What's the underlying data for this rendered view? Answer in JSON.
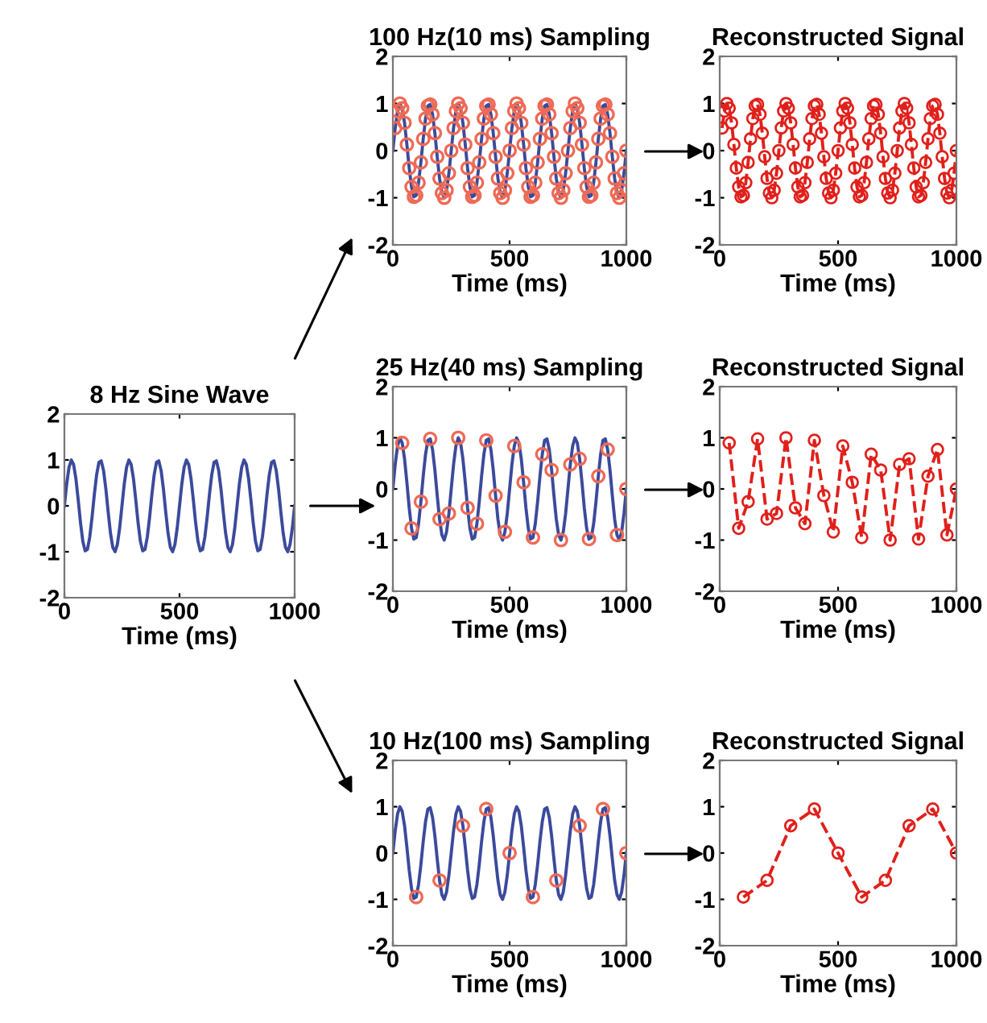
{
  "chart_data": [
    {
      "type": "line",
      "title": "8 Hz Sine Wave",
      "xlabel": "Time (ms)",
      "xlim": [
        0,
        1000
      ],
      "xticks": [
        0,
        500,
        1000
      ],
      "ylim": [
        -2,
        2
      ],
      "yticks": [
        -2,
        -1,
        0,
        1,
        2
      ],
      "series": [
        {
          "type": "line",
          "color": "#3b4a9c",
          "line_style": "solid",
          "x": [
            0,
            10,
            20,
            30,
            40,
            50,
            60,
            70,
            80,
            90,
            100,
            110,
            120,
            130,
            140,
            150,
            160,
            170,
            180,
            190,
            200,
            210,
            220,
            230,
            240,
            250,
            260,
            270,
            280,
            290,
            300,
            310,
            320,
            330,
            340,
            350,
            360,
            370,
            380,
            390,
            400,
            410,
            420,
            430,
            440,
            450,
            460,
            470,
            480,
            490,
            500,
            510,
            520,
            530,
            540,
            550,
            560,
            570,
            580,
            590,
            600,
            610,
            620,
            630,
            640,
            650,
            660,
            670,
            680,
            690,
            700,
            710,
            720,
            730,
            740,
            750,
            760,
            770,
            780,
            790,
            800,
            810,
            820,
            830,
            840,
            850,
            860,
            870,
            880,
            890,
            900,
            910,
            920,
            930,
            940,
            950,
            960,
            970,
            980,
            990,
            1000
          ],
          "values": [
            0,
            0.48,
            0.84,
            1.0,
            0.9,
            0.59,
            0.13,
            -0.37,
            -0.77,
            -0.98,
            -0.95,
            -0.68,
            -0.25,
            0.25,
            0.68,
            0.95,
            0.98,
            0.77,
            0.37,
            -0.13,
            -0.59,
            -0.9,
            -1.0,
            -0.84,
            -0.48,
            0,
            0.48,
            0.84,
            1.0,
            0.9,
            0.59,
            0.13,
            -0.37,
            -0.77,
            -0.98,
            -0.95,
            -0.68,
            -0.25,
            0.25,
            0.68,
            0.95,
            0.98,
            0.77,
            0.37,
            -0.13,
            -0.59,
            -0.9,
            -1.0,
            -0.84,
            -0.48,
            0,
            0.48,
            0.84,
            1.0,
            0.9,
            0.59,
            0.13,
            -0.37,
            -0.77,
            -0.98,
            -0.95,
            -0.68,
            -0.25,
            0.25,
            0.68,
            0.95,
            0.98,
            0.77,
            0.37,
            -0.13,
            -0.59,
            -0.9,
            -1.0,
            -0.84,
            -0.48,
            0,
            0.48,
            0.84,
            1.0,
            0.9,
            0.59,
            0.13,
            -0.37,
            -0.77,
            -0.98,
            -0.95,
            -0.68,
            -0.25,
            0.25,
            0.68,
            0.95,
            0.98,
            0.77,
            0.37,
            -0.13,
            -0.59,
            -0.9,
            -1.0,
            -0.84,
            -0.48,
            0
          ]
        }
      ]
    },
    {
      "type": "line",
      "title": "100 Hz(10 ms) Sampling",
      "xlabel": "Time (ms)",
      "xlim": [
        0,
        1000
      ],
      "xticks": [
        0,
        500,
        1000
      ],
      "ylim": [
        -2,
        2
      ],
      "yticks": [
        -2,
        -1,
        0,
        1,
        2
      ],
      "series": [
        {
          "type": "line",
          "color": "#3b4a9c",
          "line_style": "solid",
          "x": [
            0,
            10,
            20,
            30,
            40,
            50,
            60,
            70,
            80,
            90,
            100,
            110,
            120,
            130,
            140,
            150,
            160,
            170,
            180,
            190,
            200,
            210,
            220,
            230,
            240,
            250,
            260,
            270,
            280,
            290,
            300,
            310,
            320,
            330,
            340,
            350,
            360,
            370,
            380,
            390,
            400,
            410,
            420,
            430,
            440,
            450,
            460,
            470,
            480,
            490,
            500,
            510,
            520,
            530,
            540,
            550,
            560,
            570,
            580,
            590,
            600,
            610,
            620,
            630,
            640,
            650,
            660,
            670,
            680,
            690,
            700,
            710,
            720,
            730,
            740,
            750,
            760,
            770,
            780,
            790,
            800,
            810,
            820,
            830,
            840,
            850,
            860,
            870,
            880,
            890,
            900,
            910,
            920,
            930,
            940,
            950,
            960,
            970,
            980,
            990,
            1000
          ],
          "values": [
            0,
            0.48,
            0.84,
            1.0,
            0.9,
            0.59,
            0.13,
            -0.37,
            -0.77,
            -0.98,
            -0.95,
            -0.68,
            -0.25,
            0.25,
            0.68,
            0.95,
            0.98,
            0.77,
            0.37,
            -0.13,
            -0.59,
            -0.9,
            -1.0,
            -0.84,
            -0.48,
            0,
            0.48,
            0.84,
            1.0,
            0.9,
            0.59,
            0.13,
            -0.37,
            -0.77,
            -0.98,
            -0.95,
            -0.68,
            -0.25,
            0.25,
            0.68,
            0.95,
            0.98,
            0.77,
            0.37,
            -0.13,
            -0.59,
            -0.9,
            -1.0,
            -0.84,
            -0.48,
            0,
            0.48,
            0.84,
            1.0,
            0.9,
            0.59,
            0.13,
            -0.37,
            -0.77,
            -0.98,
            -0.95,
            -0.68,
            -0.25,
            0.25,
            0.68,
            0.95,
            0.98,
            0.77,
            0.37,
            -0.13,
            -0.59,
            -0.9,
            -1.0,
            -0.84,
            -0.48,
            0,
            0.48,
            0.84,
            1.0,
            0.9,
            0.59,
            0.13,
            -0.37,
            -0.77,
            -0.98,
            -0.95,
            -0.68,
            -0.25,
            0.25,
            0.68,
            0.95,
            0.98,
            0.77,
            0.37,
            -0.13,
            -0.59,
            -0.9,
            -1.0,
            -0.84,
            -0.48,
            0
          ]
        },
        {
          "type": "scatter",
          "color": "#ee6a55",
          "marker": "circle",
          "x": [
            10,
            20,
            30,
            40,
            50,
            60,
            70,
            80,
            90,
            100,
            110,
            120,
            130,
            140,
            150,
            160,
            170,
            180,
            190,
            200,
            210,
            220,
            230,
            240,
            250,
            260,
            270,
            280,
            290,
            300,
            310,
            320,
            330,
            340,
            350,
            360,
            370,
            380,
            390,
            400,
            410,
            420,
            430,
            440,
            450,
            460,
            470,
            480,
            490,
            500,
            510,
            520,
            530,
            540,
            550,
            560,
            570,
            580,
            590,
            600,
            610,
            620,
            630,
            640,
            650,
            660,
            670,
            680,
            690,
            700,
            710,
            720,
            730,
            740,
            750,
            760,
            770,
            780,
            790,
            800,
            810,
            820,
            830,
            840,
            850,
            860,
            870,
            880,
            890,
            900,
            910,
            920,
            930,
            940,
            950,
            960,
            970,
            980,
            990,
            1000
          ],
          "values": [
            0.48,
            0.84,
            1.0,
            0.9,
            0.59,
            0.13,
            -0.37,
            -0.77,
            -0.98,
            -0.95,
            -0.68,
            -0.25,
            0.25,
            0.68,
            0.95,
            0.98,
            0.77,
            0.37,
            -0.13,
            -0.59,
            -0.9,
            -1.0,
            -0.84,
            -0.48,
            0,
            0.48,
            0.84,
            1.0,
            0.9,
            0.59,
            0.13,
            -0.37,
            -0.77,
            -0.98,
            -0.95,
            -0.68,
            -0.25,
            0.25,
            0.68,
            0.95,
            0.98,
            0.77,
            0.37,
            -0.13,
            -0.59,
            -0.9,
            -1.0,
            -0.84,
            -0.48,
            0,
            0.48,
            0.84,
            1.0,
            0.9,
            0.59,
            0.13,
            -0.37,
            -0.77,
            -0.98,
            -0.95,
            -0.68,
            -0.25,
            0.25,
            0.68,
            0.95,
            0.98,
            0.77,
            0.37,
            -0.13,
            -0.59,
            -0.9,
            -1.0,
            -0.84,
            -0.48,
            0,
            0.48,
            0.84,
            1.0,
            0.9,
            0.59,
            0.13,
            -0.37,
            -0.77,
            -0.98,
            -0.95,
            -0.68,
            -0.25,
            0.25,
            0.68,
            0.95,
            0.98,
            0.77,
            0.37,
            -0.13,
            -0.59,
            -0.9,
            -1.0,
            -0.84,
            -0.48,
            0
          ]
        }
      ]
    },
    {
      "type": "line",
      "title": "Reconstructed Signal",
      "xlabel": "Time (ms)",
      "xlim": [
        0,
        1000
      ],
      "xticks": [
        0,
        500,
        1000
      ],
      "ylim": [
        -2,
        2
      ],
      "yticks": [
        -2,
        -1,
        0,
        1,
        2
      ],
      "series": [
        {
          "type": "line",
          "color": "#e0201b",
          "line_style": "dashed",
          "marker": "circle",
          "x": [
            10,
            20,
            30,
            40,
            50,
            60,
            70,
            80,
            90,
            100,
            110,
            120,
            130,
            140,
            150,
            160,
            170,
            180,
            190,
            200,
            210,
            220,
            230,
            240,
            250,
            260,
            270,
            280,
            290,
            300,
            310,
            320,
            330,
            340,
            350,
            360,
            370,
            380,
            390,
            400,
            410,
            420,
            430,
            440,
            450,
            460,
            470,
            480,
            490,
            500,
            510,
            520,
            530,
            540,
            550,
            560,
            570,
            580,
            590,
            600,
            610,
            620,
            630,
            640,
            650,
            660,
            670,
            680,
            690,
            700,
            710,
            720,
            730,
            740,
            750,
            760,
            770,
            780,
            790,
            800,
            810,
            820,
            830,
            840,
            850,
            860,
            870,
            880,
            890,
            900,
            910,
            920,
            930,
            940,
            950,
            960,
            970,
            980,
            990,
            1000
          ],
          "values": [
            0.48,
            0.84,
            1.0,
            0.9,
            0.59,
            0.13,
            -0.37,
            -0.77,
            -0.98,
            -0.95,
            -0.68,
            -0.25,
            0.25,
            0.68,
            0.95,
            0.98,
            0.77,
            0.37,
            -0.13,
            -0.59,
            -0.9,
            -1.0,
            -0.84,
            -0.48,
            0,
            0.48,
            0.84,
            1.0,
            0.9,
            0.59,
            0.13,
            -0.37,
            -0.77,
            -0.98,
            -0.95,
            -0.68,
            -0.25,
            0.25,
            0.68,
            0.95,
            0.98,
            0.77,
            0.37,
            -0.13,
            -0.59,
            -0.9,
            -1.0,
            -0.84,
            -0.48,
            0,
            0.48,
            0.84,
            1.0,
            0.9,
            0.59,
            0.13,
            -0.37,
            -0.77,
            -0.98,
            -0.95,
            -0.68,
            -0.25,
            0.25,
            0.68,
            0.95,
            0.98,
            0.77,
            0.37,
            -0.13,
            -0.59,
            -0.9,
            -1.0,
            -0.84,
            -0.48,
            0,
            0.48,
            0.84,
            1.0,
            0.9,
            0.59,
            0.13,
            -0.37,
            -0.77,
            -0.98,
            -0.95,
            -0.68,
            -0.25,
            0.25,
            0.68,
            0.95,
            0.98,
            0.77,
            0.37,
            -0.13,
            -0.59,
            -0.9,
            -1.0,
            -0.84,
            -0.48,
            0
          ]
        }
      ]
    },
    {
      "type": "line",
      "title": "25 Hz(40 ms) Sampling",
      "xlabel": "Time (ms)",
      "xlim": [
        0,
        1000
      ],
      "xticks": [
        0,
        500,
        1000
      ],
      "ylim": [
        -2,
        2
      ],
      "yticks": [
        -2,
        -1,
        0,
        1,
        2
      ],
      "series": [
        {
          "type": "line",
          "color": "#3b4a9c",
          "line_style": "solid",
          "x": [
            0,
            10,
            20,
            30,
            40,
            50,
            60,
            70,
            80,
            90,
            100,
            110,
            120,
            130,
            140,
            150,
            160,
            170,
            180,
            190,
            200,
            210,
            220,
            230,
            240,
            250,
            260,
            270,
            280,
            290,
            300,
            310,
            320,
            330,
            340,
            350,
            360,
            370,
            380,
            390,
            400,
            410,
            420,
            430,
            440,
            450,
            460,
            470,
            480,
            490,
            500,
            510,
            520,
            530,
            540,
            550,
            560,
            570,
            580,
            590,
            600,
            610,
            620,
            630,
            640,
            650,
            660,
            670,
            680,
            690,
            700,
            710,
            720,
            730,
            740,
            750,
            760,
            770,
            780,
            790,
            800,
            810,
            820,
            830,
            840,
            850,
            860,
            870,
            880,
            890,
            900,
            910,
            920,
            930,
            940,
            950,
            960,
            970,
            980,
            990,
            1000
          ],
          "values": [
            0,
            0.48,
            0.84,
            1.0,
            0.9,
            0.59,
            0.13,
            -0.37,
            -0.77,
            -0.98,
            -0.95,
            -0.68,
            -0.25,
            0.25,
            0.68,
            0.95,
            0.98,
            0.77,
            0.37,
            -0.13,
            -0.59,
            -0.9,
            -1.0,
            -0.84,
            -0.48,
            0,
            0.48,
            0.84,
            1.0,
            0.9,
            0.59,
            0.13,
            -0.37,
            -0.77,
            -0.98,
            -0.95,
            -0.68,
            -0.25,
            0.25,
            0.68,
            0.95,
            0.98,
            0.77,
            0.37,
            -0.13,
            -0.59,
            -0.9,
            -1.0,
            -0.84,
            -0.48,
            0,
            0.48,
            0.84,
            1.0,
            0.9,
            0.59,
            0.13,
            -0.37,
            -0.77,
            -0.98,
            -0.95,
            -0.68,
            -0.25,
            0.25,
            0.68,
            0.95,
            0.98,
            0.77,
            0.37,
            -0.13,
            -0.59,
            -0.9,
            -1.0,
            -0.84,
            -0.48,
            0,
            0.48,
            0.84,
            1.0,
            0.9,
            0.59,
            0.13,
            -0.37,
            -0.77,
            -0.98,
            -0.95,
            -0.68,
            -0.25,
            0.25,
            0.68,
            0.95,
            0.98,
            0.77,
            0.37,
            -0.13,
            -0.59,
            -0.9,
            -1.0,
            -0.84,
            -0.48,
            0
          ]
        },
        {
          "type": "scatter",
          "color": "#ee6a55",
          "marker": "circle",
          "x": [
            40,
            80,
            120,
            160,
            200,
            240,
            280,
            320,
            360,
            400,
            440,
            480,
            520,
            560,
            600,
            640,
            680,
            720,
            760,
            800,
            840,
            880,
            920,
            960,
            1000
          ],
          "values": [
            0.9,
            -0.77,
            -0.25,
            0.98,
            -0.59,
            -0.48,
            1.0,
            -0.37,
            -0.68,
            0.95,
            -0.13,
            -0.84,
            0.84,
            0.13,
            -0.95,
            0.68,
            0.37,
            -1.0,
            0.48,
            0.59,
            -0.98,
            0.25,
            0.77,
            -0.9,
            0
          ]
        }
      ]
    },
    {
      "type": "line",
      "title": "Reconstructed Signal",
      "xlabel": "Time (ms)",
      "xlim": [
        0,
        1000
      ],
      "xticks": [
        0,
        500,
        1000
      ],
      "ylim": [
        -2,
        2
      ],
      "yticks": [
        -2,
        -1,
        0,
        1,
        2
      ],
      "series": [
        {
          "type": "line",
          "color": "#e0201b",
          "line_style": "dashed",
          "marker": "circle",
          "x": [
            40,
            80,
            120,
            160,
            200,
            240,
            280,
            320,
            360,
            400,
            440,
            480,
            520,
            560,
            600,
            640,
            680,
            720,
            760,
            800,
            840,
            880,
            920,
            960,
            1000
          ],
          "values": [
            0.9,
            -0.77,
            -0.25,
            0.98,
            -0.59,
            -0.48,
            1.0,
            -0.37,
            -0.68,
            0.95,
            -0.13,
            -0.84,
            0.84,
            0.13,
            -0.95,
            0.68,
            0.37,
            -1.0,
            0.48,
            0.59,
            -0.98,
            0.25,
            0.77,
            -0.9,
            0
          ]
        }
      ]
    },
    {
      "type": "line",
      "title": "10 Hz(100 ms) Sampling",
      "xlabel": "Time (ms)",
      "xlim": [
        0,
        1000
      ],
      "xticks": [
        0,
        500,
        1000
      ],
      "ylim": [
        -2,
        2
      ],
      "yticks": [
        -2,
        -1,
        0,
        1,
        2
      ],
      "series": [
        {
          "type": "line",
          "color": "#3b4a9c",
          "line_style": "solid",
          "x": [
            0,
            10,
            20,
            30,
            40,
            50,
            60,
            70,
            80,
            90,
            100,
            110,
            120,
            130,
            140,
            150,
            160,
            170,
            180,
            190,
            200,
            210,
            220,
            230,
            240,
            250,
            260,
            270,
            280,
            290,
            300,
            310,
            320,
            330,
            340,
            350,
            360,
            370,
            380,
            390,
            400,
            410,
            420,
            430,
            440,
            450,
            460,
            470,
            480,
            490,
            500,
            510,
            520,
            530,
            540,
            550,
            560,
            570,
            580,
            590,
            600,
            610,
            620,
            630,
            640,
            650,
            660,
            670,
            680,
            690,
            700,
            710,
            720,
            730,
            740,
            750,
            760,
            770,
            780,
            790,
            800,
            810,
            820,
            830,
            840,
            850,
            860,
            870,
            880,
            890,
            900,
            910,
            920,
            930,
            940,
            950,
            960,
            970,
            980,
            990,
            1000
          ],
          "values": [
            0,
            0.48,
            0.84,
            1.0,
            0.9,
            0.59,
            0.13,
            -0.37,
            -0.77,
            -0.98,
            -0.95,
            -0.68,
            -0.25,
            0.25,
            0.68,
            0.95,
            0.98,
            0.77,
            0.37,
            -0.13,
            -0.59,
            -0.9,
            -1.0,
            -0.84,
            -0.48,
            0,
            0.48,
            0.84,
            1.0,
            0.9,
            0.59,
            0.13,
            -0.37,
            -0.77,
            -0.98,
            -0.95,
            -0.68,
            -0.25,
            0.25,
            0.68,
            0.95,
            0.98,
            0.77,
            0.37,
            -0.13,
            -0.59,
            -0.9,
            -1.0,
            -0.84,
            -0.48,
            0,
            0.48,
            0.84,
            1.0,
            0.9,
            0.59,
            0.13,
            -0.37,
            -0.77,
            -0.98,
            -0.95,
            -0.68,
            -0.25,
            0.25,
            0.68,
            0.95,
            0.98,
            0.77,
            0.37,
            -0.13,
            -0.59,
            -0.9,
            -1.0,
            -0.84,
            -0.48,
            0,
            0.48,
            0.84,
            1.0,
            0.9,
            0.59,
            0.13,
            -0.37,
            -0.77,
            -0.98,
            -0.95,
            -0.68,
            -0.25,
            0.25,
            0.68,
            0.95,
            0.98,
            0.77,
            0.37,
            -0.13,
            -0.59,
            -0.9,
            -1.0,
            -0.84,
            -0.48,
            0
          ]
        },
        {
          "type": "scatter",
          "color": "#ee6a55",
          "marker": "circle",
          "x": [
            100,
            200,
            300,
            400,
            500,
            600,
            700,
            800,
            900,
            1000
          ],
          "values": [
            -0.95,
            -0.59,
            0.59,
            0.95,
            0,
            -0.95,
            -0.59,
            0.59,
            0.95,
            0
          ]
        }
      ]
    },
    {
      "type": "line",
      "title": "Reconstructed Signal",
      "xlabel": "Time (ms)",
      "xlim": [
        0,
        1000
      ],
      "xticks": [
        0,
        500,
        1000
      ],
      "ylim": [
        -2,
        2
      ],
      "yticks": [
        -2,
        -1,
        0,
        1,
        2
      ],
      "series": [
        {
          "type": "line",
          "color": "#e0201b",
          "line_style": "dashed",
          "marker": "circle",
          "x": [
            100,
            200,
            300,
            400,
            500,
            600,
            700,
            800,
            900,
            1000
          ],
          "values": [
            -0.95,
            -0.59,
            0.59,
            0.95,
            0,
            -0.95,
            -0.59,
            0.59,
            0.95,
            0
          ]
        }
      ]
    }
  ]
}
